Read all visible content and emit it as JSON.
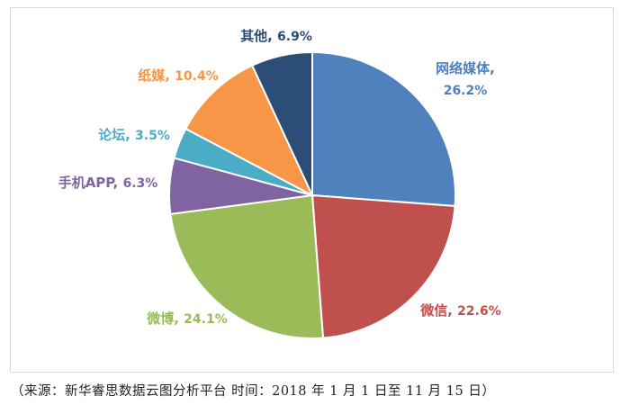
{
  "chart_data": {
    "type": "pie",
    "slices": [
      {
        "label": "网络媒体",
        "value": 26.2,
        "value_text": "26.2%",
        "color": "#4f81bd"
      },
      {
        "label": "微信",
        "value": 22.6,
        "value_text": "22.6%",
        "color": "#c0504d"
      },
      {
        "label": "微博",
        "value": 24.1,
        "value_text": "24.1%",
        "color": "#9bbb59"
      },
      {
        "label": "手机APP",
        "value": 6.3,
        "value_text": "6.3%",
        "color": "#8064a2"
      },
      {
        "label": "论坛",
        "value": 3.5,
        "value_text": "3.5%",
        "color": "#4bacc6"
      },
      {
        "label": "纸媒",
        "value": 10.4,
        "value_text": "10.4%",
        "color": "#f79646"
      },
      {
        "label": "其他",
        "value": 6.9,
        "value_text": "6.9%",
        "color": "#2c4d75"
      }
    ],
    "start": "12 o'clock, clockwise",
    "legend": "none",
    "label_style": "category, percent beside each slice"
  },
  "footer": {
    "source_note": "（来源：新华睿思数据云图分析平台 时间：2018 年 1 月 1 日至 11 月 15 日）"
  }
}
